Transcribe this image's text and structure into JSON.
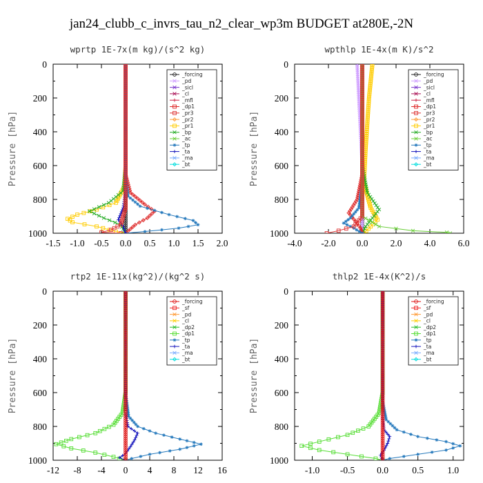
{
  "figure_title": "jan24_clubb_c_invrs_tau_n2_clear_wp3m  BUDGET at280E,-2N",
  "colors": {
    "forcing": "#222222",
    "pd": "#cc99ff",
    "sicl": "#7733cc",
    "cl": "#aa1155",
    "mfl": "#cc2244",
    "dp1": "#dd2222",
    "pr3": "#dd3333",
    "pr2": "#ff9933",
    "pr1": "#ffcc00",
    "bp": "#22aa22",
    "ac": "#66cc33",
    "tp": "#2277bb",
    "ta": "#1111bb",
    "ma": "#77aaff",
    "bt": "#00dddd",
    "sf": "#ee2222",
    "dp2": "#22bb22",
    "dp1g": "#55dd33",
    "red_forcing": "#dd1111"
  },
  "chart_data": [
    {
      "type": "line",
      "title": "wprtp  1E-7x(m kg)/(s^2 kg)",
      "ylabel": "Pressure [hPa]",
      "xlim": [
        -1.5,
        2.0
      ],
      "ylim": [
        1000,
        0
      ],
      "xticks": [
        "-1.5",
        "-1.0",
        "-0.5",
        "0.0",
        "0.5",
        "1.0",
        "1.5",
        "2.0"
      ],
      "yticks": [
        "0",
        "200",
        "400",
        "600",
        "800",
        "1000"
      ],
      "legend": [
        "_forcing",
        "_pd",
        "_sicl",
        "_cl",
        "_mfl",
        "_dp1",
        "_pr3",
        "_pr2",
        "_pr1",
        "_bp",
        "_ac",
        "_tp",
        "_ta",
        "_ma",
        "_bt"
      ],
      "series": [
        {
          "name": "_forcing",
          "color": "forcing",
          "marker": "circle",
          "points": [
            [
              0,
              0
            ],
            [
              0,
              200
            ],
            [
              0,
              400
            ],
            [
              0,
              600
            ],
            [
              0,
              800
            ],
            [
              0,
              1000
            ]
          ]
        },
        {
          "name": "_pr1",
          "color": "pr1",
          "marker": "square",
          "points": [
            [
              0,
              0
            ],
            [
              0,
              600
            ],
            [
              -0.02,
              720
            ],
            [
              -0.2,
              820
            ],
            [
              -0.6,
              860
            ],
            [
              -1.0,
              890
            ],
            [
              -1.2,
              915
            ],
            [
              -1.1,
              935
            ],
            [
              -0.6,
              960
            ],
            [
              -0.2,
              990
            ],
            [
              0,
              1000
            ]
          ]
        },
        {
          "name": "_bp",
          "color": "bp",
          "marker": "x",
          "points": [
            [
              0,
              0
            ],
            [
              0,
              600
            ],
            [
              -0.05,
              750
            ],
            [
              -0.35,
              820
            ],
            [
              -0.75,
              870
            ],
            [
              -0.45,
              910
            ],
            [
              -0.1,
              950
            ],
            [
              0,
              1000
            ]
          ]
        },
        {
          "name": "_dp1",
          "color": "dp1",
          "marker": "diamond",
          "points": [
            [
              0,
              0
            ],
            [
              0,
              650
            ],
            [
              0.1,
              760
            ],
            [
              0.4,
              830
            ],
            [
              0.6,
              870
            ],
            [
              0.45,
              910
            ],
            [
              0.2,
              950
            ],
            [
              0,
              1000
            ]
          ]
        },
        {
          "name": "_tp",
          "color": "tp",
          "marker": "star",
          "points": [
            [
              0,
              0
            ],
            [
              0,
              650
            ],
            [
              0.05,
              780
            ],
            [
              0.3,
              840
            ],
            [
              0.9,
              890
            ],
            [
              1.4,
              925
            ],
            [
              1.5,
              950
            ],
            [
              1.1,
              970
            ],
            [
              0.4,
              990
            ],
            [
              0,
              1000
            ]
          ]
        },
        {
          "name": "_ta",
          "color": "ta",
          "marker": "plus",
          "points": [
            [
              0,
              0
            ],
            [
              0,
              750
            ],
            [
              -0.05,
              850
            ],
            [
              -0.15,
              920
            ],
            [
              -0.05,
              960
            ],
            [
              0,
              1000
            ]
          ]
        },
        {
          "name": "_pr3",
          "color": "pr3",
          "marker": "square",
          "points": [
            [
              0,
              0
            ],
            [
              0,
              850
            ],
            [
              -0.1,
              950
            ],
            [
              -0.3,
              980
            ],
            [
              -0.5,
              995
            ],
            [
              -0.1,
              1000
            ]
          ]
        }
      ]
    },
    {
      "type": "line",
      "title": "wpthlp  1E-4x(m K)/s^2",
      "ylabel": "Pressure [hPa]",
      "xlim": [
        -4.0,
        6.0
      ],
      "ylim": [
        1000,
        0
      ],
      "xticks": [
        "-4.0",
        "-2.0",
        "0.0",
        "2.0",
        "4.0",
        "6.0"
      ],
      "yticks": [
        "0",
        "200",
        "400",
        "600",
        "800",
        "1000"
      ],
      "legend": [
        "_forcing",
        "_pd",
        "_sicl",
        "_cl",
        "_mfl",
        "_dp1",
        "_pr3",
        "_pr2",
        "_pr1",
        "_bp",
        "_ac",
        "_tp",
        "_ta",
        "_ma",
        "_bt"
      ],
      "series": [
        {
          "name": "_forcing",
          "color": "forcing",
          "marker": "circle",
          "points": [
            [
              0,
              0
            ],
            [
              0,
              500
            ],
            [
              0,
              1000
            ]
          ]
        },
        {
          "name": "_pd",
          "color": "pd",
          "marker": "x",
          "points": [
            [
              -0.3,
              0
            ],
            [
              -0.2,
              200
            ],
            [
              -0.1,
              400
            ],
            [
              0,
              600
            ],
            [
              0,
              1000
            ]
          ]
        },
        {
          "name": "_pr1",
          "color": "pr1",
          "marker": "square",
          "points": [
            [
              0.6,
              0
            ],
            [
              0.4,
              200
            ],
            [
              0.2,
              500
            ],
            [
              0.1,
              700
            ],
            [
              0.5,
              850
            ],
            [
              0.9,
              920
            ],
            [
              0.5,
              960
            ],
            [
              0.1,
              1000
            ]
          ]
        },
        {
          "name": "_bp",
          "color": "bp",
          "marker": "x",
          "points": [
            [
              0,
              0
            ],
            [
              0,
              600
            ],
            [
              0.3,
              760
            ],
            [
              1.0,
              860
            ],
            [
              0.6,
              910
            ],
            [
              0.2,
              960
            ],
            [
              0,
              1000
            ]
          ]
        },
        {
          "name": "_dp1",
          "color": "dp1",
          "marker": "diamond",
          "points": [
            [
              0,
              0
            ],
            [
              0,
              650
            ],
            [
              -0.3,
              800
            ],
            [
              -0.8,
              880
            ],
            [
              -0.4,
              930
            ],
            [
              -0.1,
              970
            ],
            [
              0,
              1000
            ]
          ]
        },
        {
          "name": "_tp",
          "color": "tp",
          "marker": "star",
          "points": [
            [
              0,
              0
            ],
            [
              0,
              700
            ],
            [
              -0.2,
              850
            ],
            [
              -0.7,
              910
            ],
            [
              -1.1,
              940
            ],
            [
              -0.5,
              970
            ],
            [
              0,
              1000
            ]
          ]
        },
        {
          "name": "_ac",
          "color": "ac",
          "marker": "x",
          "points": [
            [
              0,
              0
            ],
            [
              0,
              900
            ],
            [
              1.0,
              960
            ],
            [
              3.0,
              985
            ],
            [
              5.0,
              995
            ],
            [
              5.2,
              1000
            ]
          ]
        },
        {
          "name": "_pr3",
          "color": "pr3",
          "marker": "square",
          "points": [
            [
              0,
              0
            ],
            [
              0,
              900
            ],
            [
              -0.5,
              960
            ],
            [
              -1.4,
              985
            ],
            [
              -2.1,
              1000
            ]
          ]
        }
      ]
    },
    {
      "type": "line",
      "title": "rtp2  1E-11x(kg^2)/(kg^2 s)",
      "ylabel": "Pressure [hPa]",
      "xlim": [
        -12,
        16
      ],
      "ylim": [
        1000,
        0
      ],
      "xticks": [
        "-12",
        "-8",
        "-4",
        "0",
        "4",
        "8",
        "12",
        "16"
      ],
      "yticks": [
        "0",
        "200",
        "400",
        "600",
        "800",
        "1000"
      ],
      "legend": [
        "_forcing",
        "_sf",
        "_pd",
        "_cl",
        "_dp2",
        "_dp1",
        "_tp",
        "_ta",
        "_ma",
        "_bt"
      ],
      "series": [
        {
          "name": "_dp1",
          "color": "dp1g",
          "marker": "square",
          "points": [
            [
              0,
              0
            ],
            [
              0,
              600
            ],
            [
              -0.5,
              720
            ],
            [
              -2,
              790
            ],
            [
              -5,
              840
            ],
            [
              -9,
              875
            ],
            [
              -11.5,
              905
            ],
            [
              -9,
              930
            ],
            [
              -5,
              955
            ],
            [
              -2,
              980
            ],
            [
              0,
              1000
            ]
          ]
        },
        {
          "name": "_tp",
          "color": "tp",
          "marker": "star",
          "points": [
            [
              0,
              0
            ],
            [
              0,
              600
            ],
            [
              0.5,
              740
            ],
            [
              2,
              800
            ],
            [
              5,
              840
            ],
            [
              9,
              875
            ],
            [
              12.5,
              905
            ],
            [
              9,
              935
            ],
            [
              4,
              965
            ],
            [
              1,
              990
            ],
            [
              0,
              1000
            ]
          ]
        },
        {
          "name": "_ta",
          "color": "ta",
          "marker": "plus",
          "points": [
            [
              0,
              0
            ],
            [
              0,
              720
            ],
            [
              0.4,
              800
            ],
            [
              2,
              840
            ],
            [
              1.5,
              880
            ],
            [
              0.8,
              920
            ],
            [
              0,
              960
            ],
            [
              -1,
              985
            ],
            [
              0,
              1000
            ]
          ]
        },
        {
          "name": "_forcing",
          "color": "red_forcing",
          "marker": "circle",
          "points": [
            [
              0,
              0
            ],
            [
              0,
              200
            ],
            [
              0,
              400
            ],
            [
              0,
              600
            ],
            [
              0,
              800
            ],
            [
              0,
              1000
            ]
          ]
        }
      ]
    },
    {
      "type": "line",
      "title": "thlp2  1E-4x(K^2)/s",
      "ylabel": "Pressure [hPa]",
      "xlim": [
        -1.25,
        1.15
      ],
      "ylim": [
        1000,
        0
      ],
      "xticks": [
        "-1.0",
        "-0.5",
        "0.0",
        "0.5",
        "1.0"
      ],
      "xtick_values": [
        -1.0,
        -0.5,
        0.0,
        0.5,
        1.0
      ],
      "yticks": [
        "0",
        "200",
        "400",
        "600",
        "800",
        "1000"
      ],
      "legend": [
        "_forcing",
        "_sf",
        "_pd",
        "_cl",
        "_dp2",
        "_dp1",
        "_tp",
        "_ta",
        "_ma",
        "_bt"
      ],
      "series": [
        {
          "name": "_dp1",
          "color": "dp1g",
          "marker": "square",
          "points": [
            [
              0,
              0
            ],
            [
              0,
              600
            ],
            [
              -0.05,
              720
            ],
            [
              -0.2,
              800
            ],
            [
              -0.5,
              850
            ],
            [
              -0.9,
              890
            ],
            [
              -1.15,
              915
            ],
            [
              -0.9,
              940
            ],
            [
              -0.5,
              965
            ],
            [
              -0.1,
              990
            ],
            [
              0,
              1000
            ]
          ]
        },
        {
          "name": "_tp",
          "color": "tp",
          "marker": "star",
          "points": [
            [
              0,
              0
            ],
            [
              0,
              650
            ],
            [
              0.05,
              760
            ],
            [
              0.2,
              820
            ],
            [
              0.5,
              860
            ],
            [
              0.9,
              890
            ],
            [
              1.1,
              915
            ],
            [
              0.9,
              940
            ],
            [
              0.5,
              965
            ],
            [
              0.1,
              990
            ],
            [
              0,
              1000
            ]
          ]
        },
        {
          "name": "_ta",
          "color": "ta",
          "marker": "plus",
          "points": [
            [
              0,
              0
            ],
            [
              0,
              750
            ],
            [
              0.02,
              820
            ],
            [
              0.1,
              860
            ],
            [
              0.07,
              900
            ],
            [
              0.02,
              940
            ],
            [
              -0.03,
              970
            ],
            [
              0,
              1000
            ]
          ]
        },
        {
          "name": "_forcing",
          "color": "red_forcing",
          "marker": "circle",
          "points": [
            [
              0,
              0
            ],
            [
              0,
              200
            ],
            [
              0,
              400
            ],
            [
              0,
              600
            ],
            [
              0,
              800
            ],
            [
              0,
              1000
            ]
          ]
        }
      ]
    }
  ]
}
